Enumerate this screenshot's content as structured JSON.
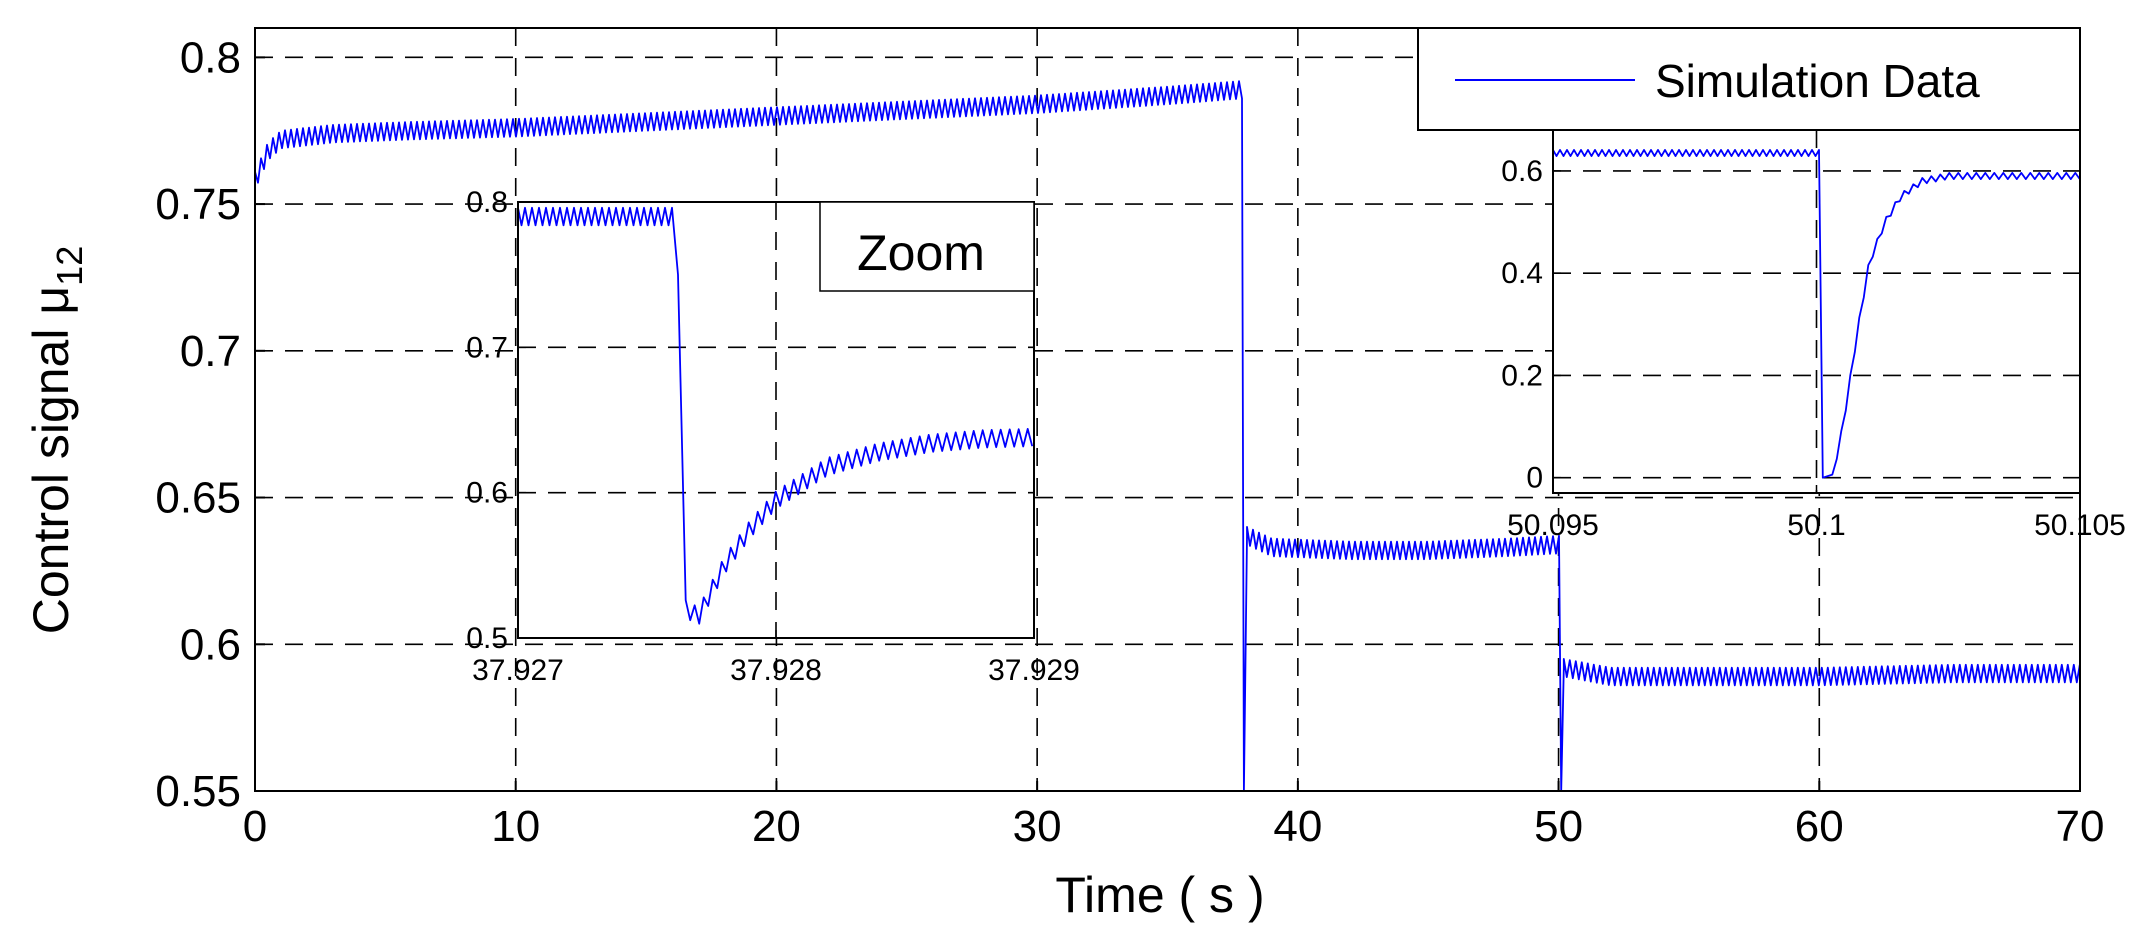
{
  "chart_data": {
    "type": "line",
    "title": "",
    "xlabel": "Time ( s )",
    "ylabel_main": "Control signal μ",
    "ylabel_sub": "12",
    "xlim": [
      0,
      70
    ],
    "ylim": [
      0.55,
      0.81
    ],
    "xticks": [
      0,
      10,
      20,
      30,
      40,
      50,
      60,
      70
    ],
    "xtick_labels": [
      "0",
      "10",
      "20",
      "30",
      "40",
      "50",
      "60",
      "70"
    ],
    "yticks": [
      0.55,
      0.6,
      0.65,
      0.7,
      0.75,
      0.8
    ],
    "ytick_labels": [
      "0.55",
      "0.6",
      "0.65",
      "0.7",
      "0.75",
      "0.8"
    ],
    "grid": true,
    "legend": {
      "position": "top-right",
      "entries": [
        "Simulation Data"
      ]
    },
    "series": [
      {
        "name": "Simulation Data",
        "color": "#0000ff",
        "segments": [
          {
            "t_start": 0.0,
            "t_end": 37.93,
            "points": [
              [
                0.0,
                0.758
              ],
              [
                0.5,
                0.768
              ],
              [
                1.0,
                0.772
              ],
              [
                3.0,
                0.774
              ],
              [
                6.0,
                0.775
              ],
              [
                10.0,
                0.776
              ],
              [
                15.0,
                0.778
              ],
              [
                20.0,
                0.78
              ],
              [
                25.0,
                0.782
              ],
              [
                30.0,
                0.784
              ],
              [
                35.0,
                0.787
              ],
              [
                37.9,
                0.789
              ]
            ],
            "ripple": 0.006
          },
          {
            "t_start": 37.93,
            "t_end": 50.1,
            "points": [
              [
                37.93,
                0.55
              ],
              [
                38.05,
                0.637
              ],
              [
                39.0,
                0.633
              ],
              [
                42.0,
                0.632
              ],
              [
                45.0,
                0.632
              ],
              [
                48.0,
                0.633
              ],
              [
                50.1,
                0.634
              ]
            ],
            "ripple": 0.006
          },
          {
            "t_start": 50.1,
            "t_end": 70.0,
            "points": [
              [
                50.1,
                0.55
              ],
              [
                50.2,
                0.592
              ],
              [
                52.0,
                0.589
              ],
              [
                55.0,
                0.589
              ],
              [
                60.0,
                0.589
              ],
              [
                65.0,
                0.59
              ],
              [
                70.0,
                0.59
              ]
            ],
            "ripple": 0.006
          }
        ]
      }
    ],
    "insets": [
      {
        "name": "Zoom",
        "label": "Zoom",
        "xlim": [
          37.927,
          37.929
        ],
        "ylim": [
          0.5,
          0.8
        ],
        "xticks": [
          37.927,
          37.928,
          37.929
        ],
        "xtick_labels": [
          "37.927",
          "37.928",
          "37.929"
        ],
        "yticks": [
          0.5,
          0.6,
          0.7,
          0.8
        ],
        "ytick_labels": [
          "0.5",
          "0.6",
          "0.7",
          "0.8"
        ],
        "points": [
          [
            37.927,
            0.79
          ],
          [
            37.92761,
            0.79
          ],
          [
            37.92762,
            0.75
          ],
          [
            37.92765,
            0.52
          ],
          [
            37.9277,
            0.515
          ],
          [
            37.9278,
            0.55
          ],
          [
            37.9279,
            0.575
          ],
          [
            37.928,
            0.595
          ],
          [
            37.9282,
            0.618
          ],
          [
            37.9284,
            0.628
          ],
          [
            37.9286,
            0.634
          ],
          [
            37.9288,
            0.637
          ],
          [
            37.929,
            0.638
          ]
        ],
        "ripple": 0.012
      },
      {
        "name": "inset-right",
        "label": "",
        "xlim": [
          50.095,
          50.105
        ],
        "ylim": [
          -0.03,
          0.68
        ],
        "xticks": [
          50.095,
          50.1,
          50.105
        ],
        "xtick_labels": [
          "50.095",
          "50.1",
          "50.105"
        ],
        "yticks": [
          0,
          0.2,
          0.4,
          0.6
        ],
        "ytick_labels": [
          "0",
          "0.2",
          "0.4",
          "0.6"
        ],
        "points": [
          [
            50.095,
            0.635
          ],
          [
            50.1001,
            0.635
          ],
          [
            50.10012,
            0.0
          ],
          [
            50.1003,
            0.0
          ],
          [
            50.1005,
            0.1
          ],
          [
            50.1008,
            0.3
          ],
          [
            50.101,
            0.42
          ],
          [
            50.1013,
            0.5
          ],
          [
            50.1016,
            0.55
          ],
          [
            50.102,
            0.58
          ],
          [
            50.1025,
            0.59
          ],
          [
            50.105,
            0.59
          ]
        ],
        "ripple": 0.012
      }
    ]
  }
}
